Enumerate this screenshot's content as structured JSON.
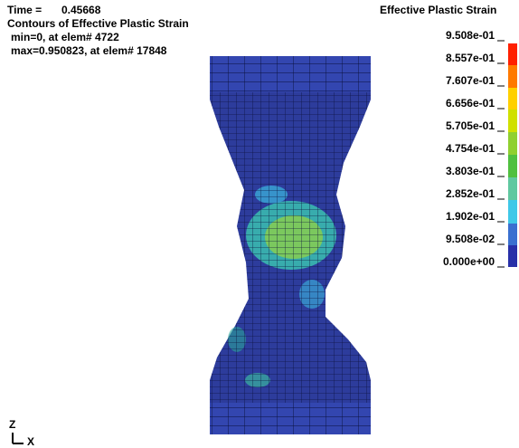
{
  "header": {
    "time_label": "Time =",
    "time_value": "0.45668",
    "title": "Contours of Effective Plastic Strain",
    "min": "min=0, at elem# 4722",
    "max": "max=0.950823, at elem# 17848"
  },
  "legend": {
    "title": "Effective Plastic Strain",
    "labels": [
      "9.508e-01",
      "8.557e-01",
      "7.607e-01",
      "6.656e-01",
      "5.705e-01",
      "4.754e-01",
      "3.803e-01",
      "2.852e-01",
      "1.902e-01",
      "9.508e-02",
      "0.000e+00"
    ]
  },
  "triad": {
    "z": "Z",
    "x": "X"
  }
}
